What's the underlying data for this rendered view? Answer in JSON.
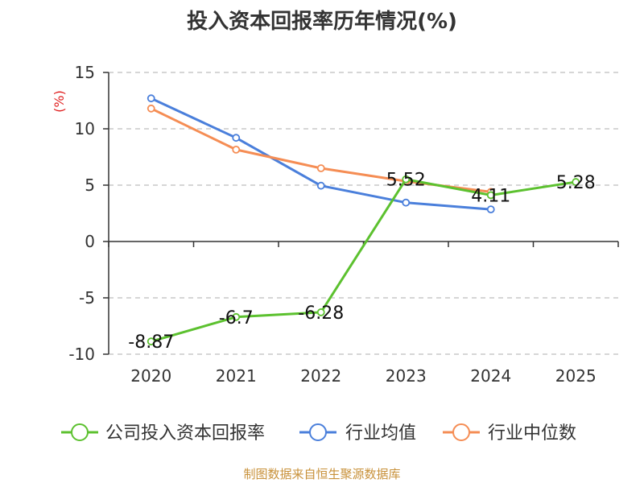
{
  "title": "投入资本回报率历年情况(%)",
  "source": "制图数据来自恒生聚源数据库",
  "chart_data": {
    "type": "line",
    "title": "投入资本回报率历年情况(%)",
    "ylabel": "(%)",
    "xlabel": "",
    "ylim": [
      -10,
      15
    ],
    "yticks": [
      15,
      10,
      5,
      0,
      -5,
      -10
    ],
    "grid": true,
    "categories": [
      "2020",
      "2021",
      "2022",
      "2023",
      "2024",
      "2025"
    ],
    "series": [
      {
        "name": "公司投入资本回报率",
        "color": "#5cc12f",
        "values": [
          -8.87,
          -6.7,
          -6.28,
          5.52,
          4.11,
          5.28
        ],
        "labels": [
          "-8.87",
          "-6.7",
          "-6.28",
          "5.52",
          "4.11",
          "5.28"
        ]
      },
      {
        "name": "行业均值",
        "color": "#4a7fdb",
        "values": [
          12.7,
          9.2,
          4.95,
          3.45,
          2.85,
          null
        ]
      },
      {
        "name": "行业中位数",
        "color": "#f58d54",
        "values": [
          11.8,
          8.15,
          6.5,
          5.35,
          4.4,
          null
        ]
      }
    ],
    "legend": [
      "公司投入资本回报率",
      "行业均值",
      "行业中位数"
    ],
    "legend_position": "bottom"
  }
}
